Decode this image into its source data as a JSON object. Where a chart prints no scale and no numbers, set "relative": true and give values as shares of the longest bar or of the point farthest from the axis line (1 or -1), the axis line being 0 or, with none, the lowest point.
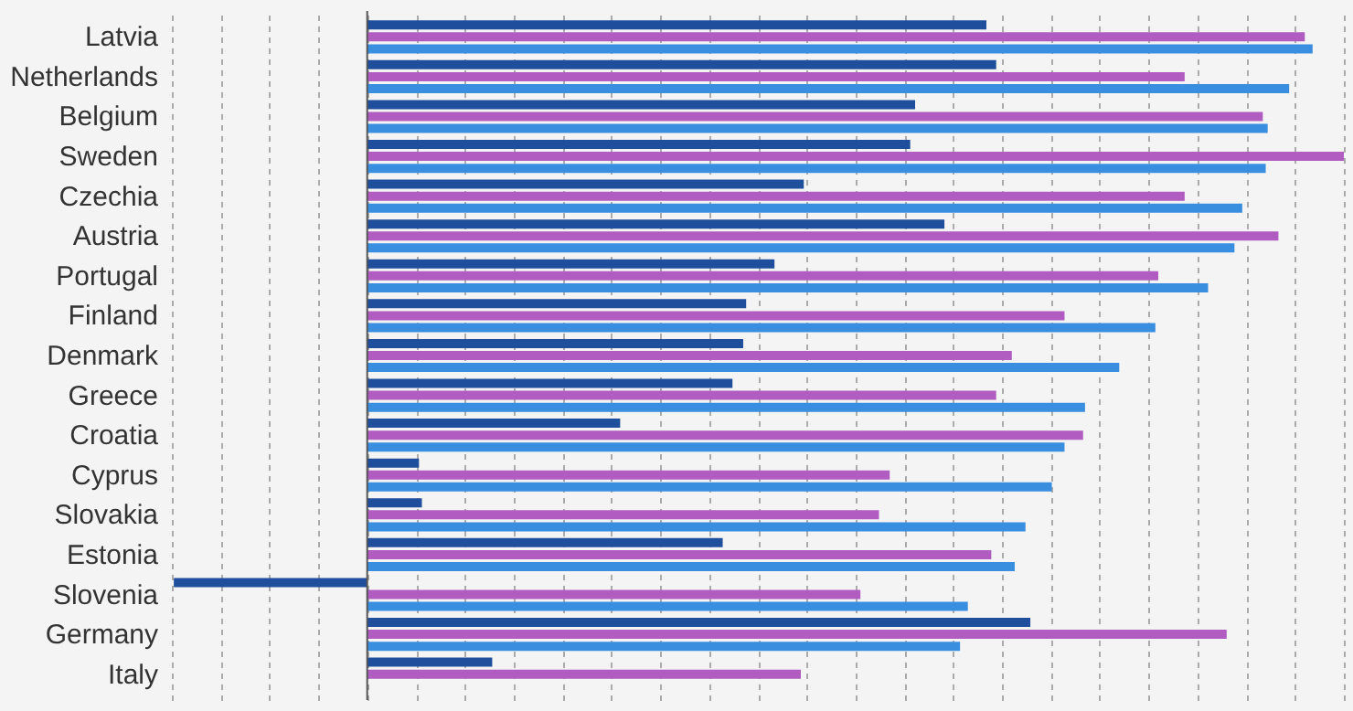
{
  "chart_data": {
    "type": "bar",
    "orientation": "horizontal",
    "relative": true,
    "grid": "x",
    "categories": [
      "Latvia",
      "Netherlands",
      "Belgium",
      "Sweden",
      "Czechia",
      "Austria",
      "Portugal",
      "Finland",
      "Denmark",
      "Greece",
      "Croatia",
      "Cyprus",
      "Slovakia",
      "Estonia",
      "Slovenia",
      "Germany",
      "Italy"
    ],
    "series": [
      {
        "color": "#1f4e9c",
        "values": [
          0.634,
          0.644,
          0.561,
          0.556,
          0.447,
          0.591,
          0.417,
          0.388,
          0.385,
          0.374,
          0.259,
          0.053,
          0.056,
          0.364,
          -0.198,
          0.679,
          0.128
        ]
      },
      {
        "color": "#b05cc0",
        "values": [
          0.96,
          0.837,
          0.917,
          1,
          0.837,
          0.933,
          0.81,
          0.714,
          0.66,
          0.644,
          0.733,
          0.535,
          0.524,
          0.639,
          0.505,
          0.88,
          0.444
        ]
      },
      {
        "color": "#3a8ee0",
        "values": [
          0.968,
          0.944,
          0.922,
          0.92,
          0.896,
          0.888,
          0.861,
          0.807,
          0.77,
          0.735,
          0.714,
          0.701,
          0.674,
          0.663,
          0.615,
          0.607,
          null
        ]
      }
    ]
  }
}
